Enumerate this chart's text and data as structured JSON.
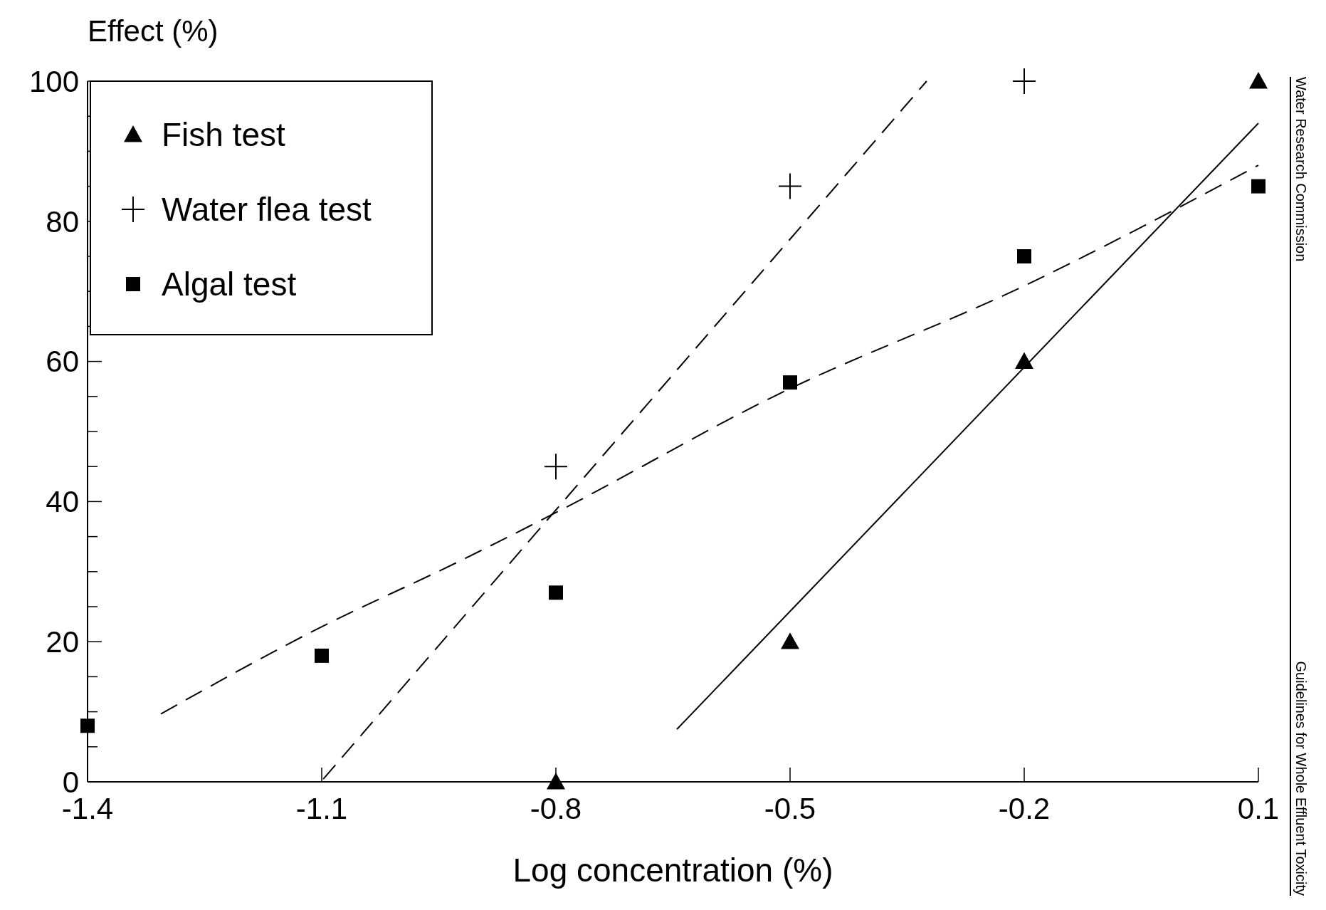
{
  "chart_data": {
    "type": "scatter",
    "ylabel": "Effect (%)",
    "xlabel": "Log concentration (%)",
    "xlim": [
      -1.4,
      0.1
    ],
    "xticks": [
      -1.4,
      -1.1,
      -0.8,
      -0.5,
      -0.2,
      0.1
    ],
    "ylim": [
      0,
      100
    ],
    "yticks": [
      0,
      {
        "value": 5,
        "label": null
      },
      {
        "value": 10,
        "label": null
      },
      {
        "value": 15,
        "label": null
      },
      20,
      {
        "value": 25,
        "label": null
      },
      {
        "value": 30,
        "label": null
      },
      {
        "value": 35,
        "label": null
      },
      40,
      {
        "value": 45,
        "label": null
      },
      {
        "value": 50,
        "label": null
      },
      {
        "value": 55,
        "label": null
      },
      60,
      {
        "value": 65,
        "label": null
      },
      {
        "value": 70,
        "label": null
      },
      {
        "value": 75,
        "label": null
      },
      80,
      {
        "value": 85,
        "label": null
      },
      {
        "value": 90,
        "label": null
      },
      {
        "value": 95,
        "label": null
      },
      100
    ],
    "grid": false,
    "legend": "top left",
    "series": [
      {
        "name": "Fish test",
        "marker": "triangle",
        "color": "#000000",
        "x": [
          -0.8,
          -0.5,
          -0.2,
          0.1
        ],
        "values": [
          0,
          20,
          60,
          100
        ]
      },
      {
        "name": "Water flea test",
        "marker": "cross",
        "color": "#000000",
        "x": [
          -0.8,
          -0.5,
          -0.2
        ],
        "values": [
          45,
          85,
          100
        ]
      },
      {
        "name": "Algal test",
        "marker": "square",
        "color": "#000000",
        "x": [
          -1.4,
          -1.1,
          -0.8,
          -0.5,
          -0.2,
          0.1
        ],
        "values": [
          8,
          18,
          27,
          57,
          75,
          85
        ]
      },
      {
        "type": "line",
        "line_style": "solid",
        "color": "#000000",
        "x": [
          -0.645,
          0.1
        ],
        "values": [
          7.5,
          94
        ]
      },
      {
        "type": "line",
        "line_style": "dashed",
        "color": "#000000",
        "x": [
          -1.098,
          -0.325
        ],
        "values": [
          0.4,
          100
        ]
      },
      {
        "type": "line",
        "line_style": "dashed",
        "color": "#000000",
        "x": [
          -1.306,
          -1.113,
          -0.916,
          -0.797,
          -0.519,
          -0.196,
          0.1
        ],
        "values": [
          9.7,
          21.4,
          31.9,
          38.6,
          55.1,
          71.0,
          88
        ]
      }
    ],
    "annotations": [
      "Water Research Commission",
      "Guidelines for Whole Effluent Toxicity"
    ]
  }
}
